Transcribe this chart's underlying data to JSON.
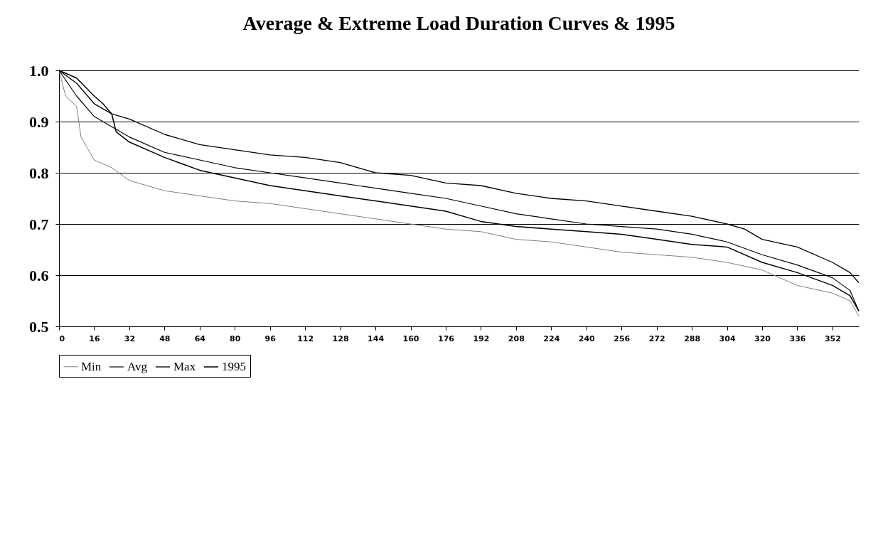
{
  "chart_data": {
    "type": "line",
    "title": "Average & Extreme Load Duration Curves & 1995",
    "xlim": [
      0,
      364
    ],
    "xticks": [
      0,
      16,
      32,
      48,
      64,
      80,
      96,
      112,
      128,
      144,
      160,
      176,
      192,
      208,
      224,
      240,
      256,
      272,
      288,
      304,
      320,
      336,
      352
    ],
    "ylim": [
      0.5,
      1.0
    ],
    "yticks": [
      {
        "value": 0.5,
        "label": "0.5"
      },
      {
        "value": 0.6,
        "label": "0.6"
      },
      {
        "value": 0.7,
        "label": "0.7"
      },
      {
        "value": 0.8,
        "label": "0.8"
      },
      {
        "value": 0.9,
        "label": "0.9"
      },
      {
        "value": 1.0,
        "label": "1.0"
      }
    ],
    "grid": "y",
    "legend": "bottom",
    "marker": "none",
    "line_style": "solid",
    "series": [
      {
        "name": "Min",
        "color": "#808080",
        "x": [
          0,
          3,
          8,
          10,
          16,
          24,
          32,
          48,
          64,
          80,
          96,
          112,
          128,
          144,
          160,
          176,
          192,
          208,
          224,
          240,
          256,
          272,
          288,
          304,
          320,
          336,
          352,
          360,
          364
        ],
        "values": [
          1.0,
          0.95,
          0.93,
          0.87,
          0.825,
          0.81,
          0.785,
          0.765,
          0.755,
          0.745,
          0.74,
          0.73,
          0.72,
          0.71,
          0.7,
          0.69,
          0.685,
          0.67,
          0.665,
          0.655,
          0.645,
          0.64,
          0.635,
          0.625,
          0.61,
          0.58,
          0.565,
          0.55,
          0.52
        ]
      },
      {
        "name": "Avg",
        "color": "#000000",
        "x": [
          0,
          8,
          16,
          24,
          32,
          48,
          64,
          80,
          96,
          112,
          128,
          144,
          160,
          176,
          192,
          208,
          224,
          240,
          256,
          272,
          288,
          304,
          320,
          336,
          352,
          360,
          364
        ],
        "values": [
          1.0,
          0.95,
          0.91,
          0.89,
          0.87,
          0.84,
          0.825,
          0.81,
          0.8,
          0.79,
          0.78,
          0.77,
          0.76,
          0.75,
          0.735,
          0.72,
          0.71,
          0.7,
          0.695,
          0.69,
          0.68,
          0.665,
          0.64,
          0.62,
          0.595,
          0.57,
          0.53
        ]
      },
      {
        "name": "Max",
        "color": "#000000",
        "x": [
          0,
          8,
          16,
          24,
          32,
          48,
          64,
          80,
          96,
          112,
          128,
          144,
          160,
          176,
          192,
          208,
          224,
          240,
          256,
          272,
          288,
          304,
          312,
          320,
          336,
          352,
          360,
          364
        ],
        "values": [
          1.0,
          0.975,
          0.935,
          0.915,
          0.905,
          0.875,
          0.855,
          0.845,
          0.835,
          0.83,
          0.82,
          0.8,
          0.795,
          0.78,
          0.775,
          0.76,
          0.75,
          0.745,
          0.735,
          0.725,
          0.715,
          0.7,
          0.69,
          0.67,
          0.655,
          0.625,
          0.605,
          0.585
        ]
      },
      {
        "name": "1995",
        "color": "#000000",
        "x": [
          0,
          8,
          16,
          20,
          24,
          26,
          32,
          48,
          64,
          80,
          96,
          112,
          128,
          144,
          160,
          176,
          192,
          208,
          224,
          240,
          256,
          272,
          288,
          304,
          320,
          336,
          352,
          360,
          364
        ],
        "values": [
          1.0,
          0.985,
          0.95,
          0.935,
          0.915,
          0.88,
          0.86,
          0.83,
          0.805,
          0.79,
          0.775,
          0.765,
          0.755,
          0.745,
          0.735,
          0.725,
          0.705,
          0.695,
          0.69,
          0.685,
          0.68,
          0.67,
          0.66,
          0.655,
          0.625,
          0.605,
          0.58,
          0.56,
          0.53
        ]
      }
    ]
  }
}
